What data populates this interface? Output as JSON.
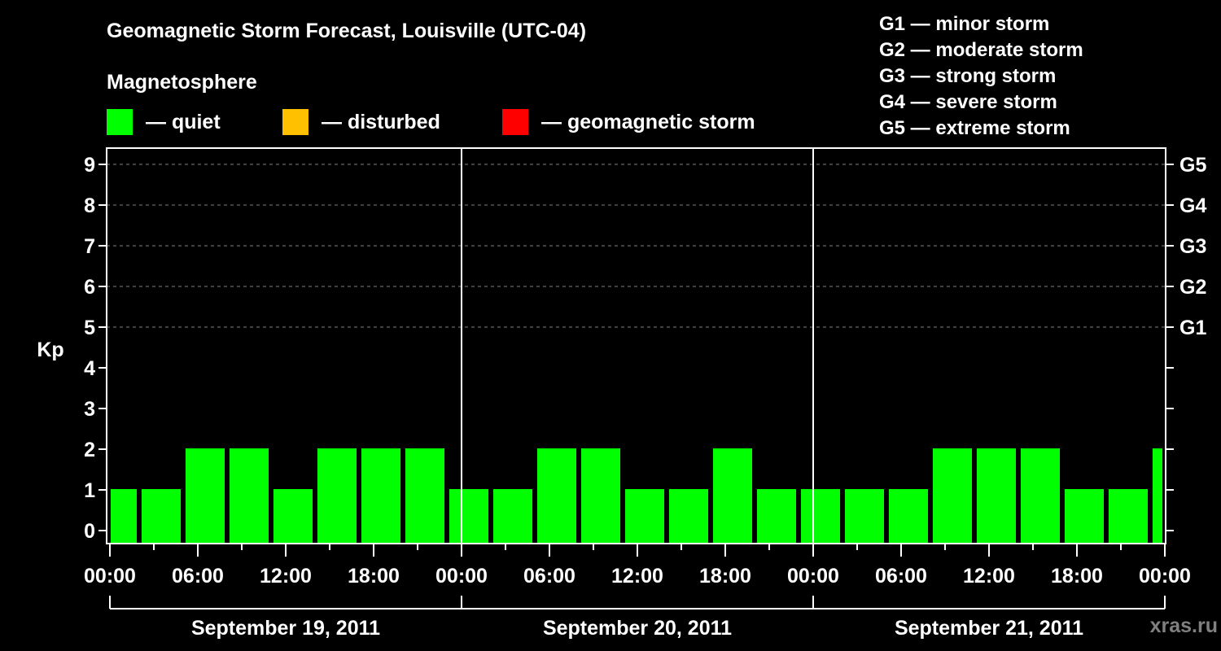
{
  "header": {
    "title": "Geomagnetic Storm Forecast, Louisville (UTC-04)",
    "subtitle": "Magnetosphere"
  },
  "legend": {
    "items": [
      {
        "label": "— quiet",
        "color": "#00ff00"
      },
      {
        "label": "— disturbed",
        "color": "#ffc000"
      },
      {
        "label": "— geomagnetic storm",
        "color": "#ff0000"
      }
    ]
  },
  "storm_scale": [
    "G1 — minor storm",
    "G2 — moderate storm",
    "G3 — strong storm",
    "G4 — severe storm",
    "G5 — extreme storm"
  ],
  "watermark": "xras.ru",
  "chart_data": {
    "type": "bar",
    "title": "Geomagnetic Storm Forecast, Louisville (UTC-04)",
    "subtitle": "Magnetosphere",
    "xlabel": "",
    "ylabel": "Kp",
    "ylim": [
      0,
      9
    ],
    "yticks": [
      0,
      1,
      2,
      3,
      4,
      5,
      6,
      7,
      8,
      9
    ],
    "right_axis_labels": [
      {
        "kp": 5,
        "label": "G1"
      },
      {
        "kp": 6,
        "label": "G2"
      },
      {
        "kp": 7,
        "label": "G3"
      },
      {
        "kp": 8,
        "label": "G4"
      },
      {
        "kp": 9,
        "label": "G5"
      }
    ],
    "grid": "dashed horizontal at Kp 5–9",
    "xtick_labels": [
      "00:00",
      "06:00",
      "12:00",
      "18:00",
      "00:00",
      "06:00",
      "12:00",
      "18:00",
      "00:00",
      "06:00",
      "12:00",
      "18:00",
      "00:00"
    ],
    "days": [
      "September 19, 2011",
      "September 20, 2011",
      "September 21, 2011"
    ],
    "bar_interval_hours": 3,
    "categories": [
      "Sep 19 00-01:30",
      "Sep 19 01:30",
      "Sep 19 04:30",
      "Sep 19 07:30",
      "Sep 19 10:30",
      "Sep 19 13:30",
      "Sep 19 16:30",
      "Sep 19 19:30",
      "Sep 19 22:30",
      "Sep 20 01:30",
      "Sep 20 04:30",
      "Sep 20 07:30",
      "Sep 20 10:30",
      "Sep 20 13:30",
      "Sep 20 16:30",
      "Sep 20 19:30",
      "Sep 20 22:30",
      "Sep 21 01:30",
      "Sep 21 04:30",
      "Sep 21 07:30",
      "Sep 21 10:30",
      "Sep 21 13:30",
      "Sep 21 16:30",
      "Sep 21 19:30",
      "Sep 21 22:30"
    ],
    "values": [
      1,
      1,
      2,
      2,
      1,
      2,
      2,
      2,
      1,
      1,
      2,
      2,
      1,
      1,
      2,
      1,
      1,
      1,
      1,
      2,
      2,
      2,
      1,
      1,
      2
    ],
    "series_color": "#00ff00",
    "legend": [
      "quiet",
      "disturbed",
      "geomagnetic storm"
    ]
  }
}
